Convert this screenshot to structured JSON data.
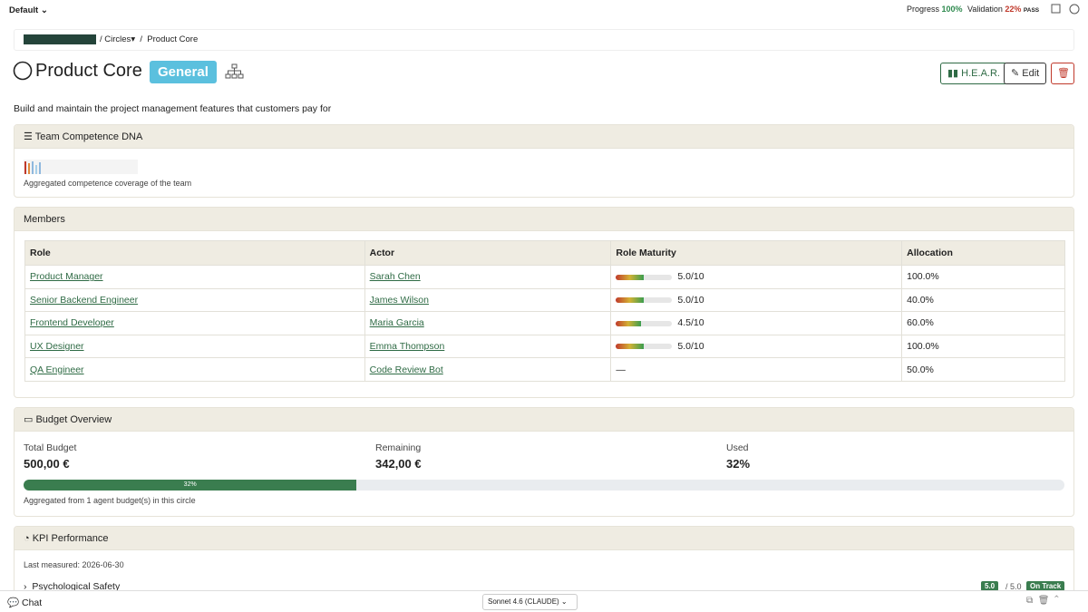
{
  "topbar": {
    "workspace": "Default",
    "progress_label": "Progress",
    "progress_value": "100%",
    "validation_label": "Validation",
    "validation_value": "22%",
    "validation_status": "PASS"
  },
  "breadcrumb": {
    "items": [
      "Circles",
      "Product Core"
    ]
  },
  "header": {
    "title": "Product Core",
    "badge": "General",
    "buttons": [
      "H.E.A.R.",
      "Edit"
    ]
  },
  "description": "Build and maintain the project management features that customers pay for",
  "competence": {
    "title": "Team Competence DNA",
    "caption": "Aggregated competence coverage of the team"
  },
  "members": {
    "title": "Members",
    "columns": [
      "Role",
      "Actor",
      "Role Maturity",
      "Allocation"
    ],
    "maturity_scale": [
      0,
      10
    ],
    "rows": [
      {
        "role": "Product Manager",
        "actor": "Sarah Chen",
        "maturity": {
          "value": 5.0,
          "label": "5.0/10"
        },
        "allocation": "100.0%"
      },
      {
        "role": "Senior Backend Engineer",
        "actor": "James Wilson",
        "maturity": {
          "value": 5.0,
          "label": "5.0/10"
        },
        "allocation": "40.0%"
      },
      {
        "role": "Frontend Developer",
        "actor": "Maria Garcia",
        "maturity": {
          "value": 4.5,
          "label": "4.5/10"
        },
        "allocation": "60.0%"
      },
      {
        "role": "UX Designer",
        "actor": "Emma Thompson",
        "maturity": {
          "value": 5.0,
          "label": "5.0/10"
        },
        "allocation": "100.0%"
      },
      {
        "role": "QA Engineer",
        "actor": "Code Review Bot",
        "maturity": {
          "value": null,
          "label": "—"
        },
        "allocation": "50.0%"
      }
    ]
  },
  "budget": {
    "title": "Budget Overview",
    "total_label": "Total Budget",
    "total": "500,00 €",
    "remaining_label": "Remaining",
    "remaining": "342,00 €",
    "used_label": "Used",
    "used": {
      "value": 32,
      "label": "32%"
    },
    "scale": [
      0,
      100
    ],
    "caption": "Aggregated from 1 agent budget(s) in this circle"
  },
  "kpi": {
    "title": "KPI Performance",
    "last_measured": "Last measured: 2026-06-30",
    "items": [
      {
        "name": "Psychological Safety",
        "score": "5.0",
        "target": "/ 5.0",
        "status": "On Track"
      }
    ]
  },
  "footer": {
    "chat": "Chat",
    "model": "Sonnet 4.6 (CLAUDE)"
  }
}
